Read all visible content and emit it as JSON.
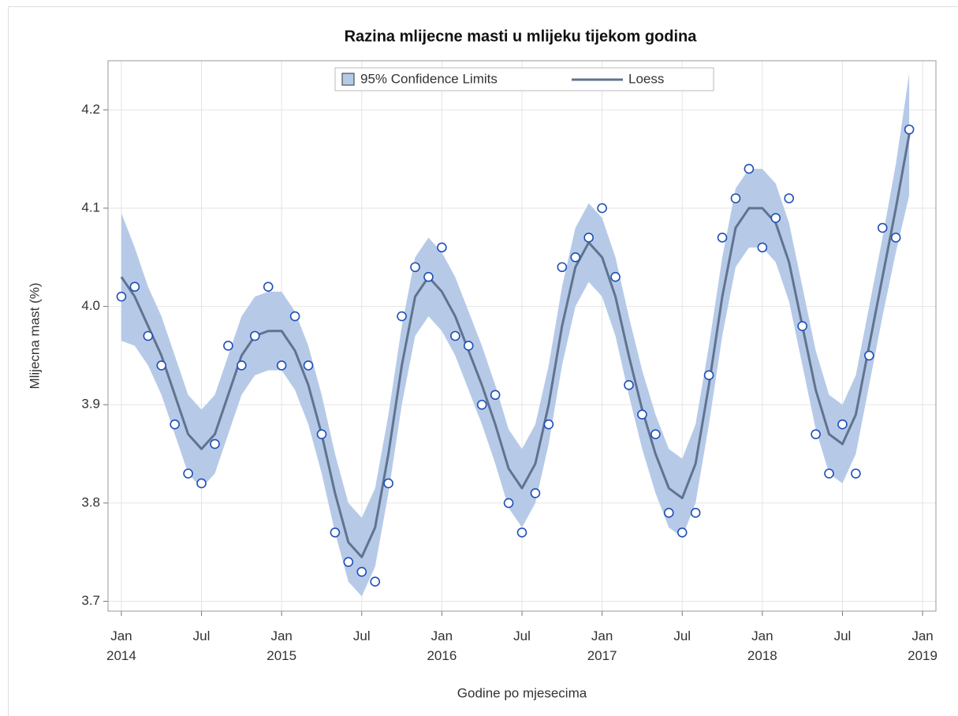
{
  "chart_data": {
    "type": "scatter",
    "title": "Razina mlijecne masti u mlijeku tijekom godina",
    "xlabel": "Godine po mjesecima",
    "ylabel": "Mlijecna mast (%)",
    "x": [
      "2014-01",
      "2014-02",
      "2014-03",
      "2014-04",
      "2014-05",
      "2014-06",
      "2014-07",
      "2014-08",
      "2014-09",
      "2014-10",
      "2014-11",
      "2014-12",
      "2015-01",
      "2015-02",
      "2015-03",
      "2015-04",
      "2015-05",
      "2015-06",
      "2015-07",
      "2015-08",
      "2015-09",
      "2015-10",
      "2015-11",
      "2015-12",
      "2016-01",
      "2016-02",
      "2016-03",
      "2016-04",
      "2016-05",
      "2016-06",
      "2016-07",
      "2016-08",
      "2016-09",
      "2016-10",
      "2016-11",
      "2016-12",
      "2017-01",
      "2017-02",
      "2017-03",
      "2017-04",
      "2017-05",
      "2017-06",
      "2017-07",
      "2017-08",
      "2017-09",
      "2017-10",
      "2017-11",
      "2017-12",
      "2018-01",
      "2018-02",
      "2018-03",
      "2018-04",
      "2018-05",
      "2018-06",
      "2018-07",
      "2018-08",
      "2018-09",
      "2018-10",
      "2018-11",
      "2018-12"
    ],
    "points": {
      "color": "#1f4fb5",
      "values": [
        4.01,
        4.02,
        3.97,
        3.94,
        3.88,
        3.83,
        3.82,
        3.86,
        3.96,
        3.94,
        3.97,
        4.02,
        3.94,
        3.99,
        3.94,
        3.87,
        3.77,
        3.74,
        3.73,
        3.72,
        3.82,
        3.99,
        4.04,
        4.03,
        4.06,
        3.97,
        3.96,
        3.9,
        3.91,
        3.8,
        3.77,
        3.81,
        3.88,
        4.04,
        4.05,
        4.07,
        4.1,
        4.03,
        3.92,
        3.89,
        3.87,
        3.79,
        3.77,
        3.79,
        3.93,
        4.07,
        4.11,
        4.14,
        4.06,
        4.09,
        4.11,
        3.98,
        3.87,
        3.83,
        3.88,
        3.83,
        3.95,
        4.08,
        4.07,
        4.18
      ]
    },
    "loess": {
      "name": "Loess",
      "color": "#60738f",
      "values": [
        4.03,
        4.01,
        3.98,
        3.95,
        3.91,
        3.87,
        3.855,
        3.87,
        3.91,
        3.95,
        3.97,
        3.975,
        3.975,
        3.955,
        3.92,
        3.87,
        3.81,
        3.76,
        3.745,
        3.775,
        3.85,
        3.94,
        4.01,
        4.03,
        4.015,
        3.99,
        3.955,
        3.92,
        3.88,
        3.835,
        3.815,
        3.84,
        3.9,
        3.98,
        4.04,
        4.065,
        4.05,
        4.01,
        3.95,
        3.895,
        3.85,
        3.815,
        3.805,
        3.84,
        3.92,
        4.01,
        4.08,
        4.1,
        4.1,
        4.085,
        4.045,
        3.98,
        3.915,
        3.87,
        3.86,
        3.89,
        3.96,
        4.03,
        4.1,
        4.175
      ]
    },
    "band": {
      "name": "95% Confidence Limits",
      "color": "#b6cae8",
      "upper": [
        4.095,
        4.06,
        4.02,
        3.99,
        3.95,
        3.91,
        3.895,
        3.91,
        3.95,
        3.99,
        4.01,
        4.015,
        4.015,
        3.995,
        3.96,
        3.91,
        3.85,
        3.8,
        3.785,
        3.815,
        3.89,
        3.98,
        4.05,
        4.07,
        4.055,
        4.03,
        3.995,
        3.96,
        3.92,
        3.875,
        3.855,
        3.88,
        3.94,
        4.02,
        4.08,
        4.105,
        4.09,
        4.05,
        3.99,
        3.935,
        3.89,
        3.855,
        3.845,
        3.88,
        3.96,
        4.05,
        4.12,
        4.14,
        4.14,
        4.125,
        4.085,
        4.02,
        3.955,
        3.91,
        3.9,
        3.93,
        4.0,
        4.07,
        4.145,
        4.237
      ],
      "lower": [
        3.965,
        3.96,
        3.94,
        3.91,
        3.87,
        3.83,
        3.815,
        3.83,
        3.87,
        3.91,
        3.93,
        3.935,
        3.935,
        3.915,
        3.88,
        3.83,
        3.77,
        3.72,
        3.705,
        3.735,
        3.81,
        3.9,
        3.97,
        3.99,
        3.975,
        3.95,
        3.915,
        3.88,
        3.84,
        3.795,
        3.775,
        3.8,
        3.86,
        3.94,
        4.0,
        4.025,
        4.01,
        3.97,
        3.91,
        3.855,
        3.81,
        3.775,
        3.765,
        3.8,
        3.88,
        3.97,
        4.04,
        4.06,
        4.06,
        4.045,
        4.005,
        3.94,
        3.875,
        3.83,
        3.82,
        3.85,
        3.92,
        3.99,
        4.055,
        4.113
      ]
    },
    "xlim": [
      "2013-12",
      "2019-02"
    ],
    "xticks": [
      {
        "value": "2014-01",
        "label": "Jan 2014"
      },
      {
        "value": "2014-07",
        "label": "Jul"
      },
      {
        "value": "2015-01",
        "label": "Jan 2015"
      },
      {
        "value": "2015-07",
        "label": "Jul"
      },
      {
        "value": "2016-01",
        "label": "Jan 2016"
      },
      {
        "value": "2016-07",
        "label": "Jul"
      },
      {
        "value": "2017-01",
        "label": "Jan 2017"
      },
      {
        "value": "2017-07",
        "label": "Jul"
      },
      {
        "value": "2018-01",
        "label": "Jan 2018"
      },
      {
        "value": "2018-07",
        "label": "Jul"
      },
      {
        "value": "2019-01",
        "label": "Jan 2019"
      }
    ],
    "ylim": [
      3.69,
      4.25
    ],
    "yticks": [
      {
        "value": 3.7,
        "label": "3.7"
      },
      {
        "value": 3.8,
        "label": "3.8"
      },
      {
        "value": 3.9,
        "label": "3.9"
      },
      {
        "value": 4.0,
        "label": "4.0"
      },
      {
        "value": 4.1,
        "label": "4.1"
      },
      {
        "value": 4.2,
        "label": "4.2"
      }
    ],
    "grid": true,
    "legend": "top"
  }
}
